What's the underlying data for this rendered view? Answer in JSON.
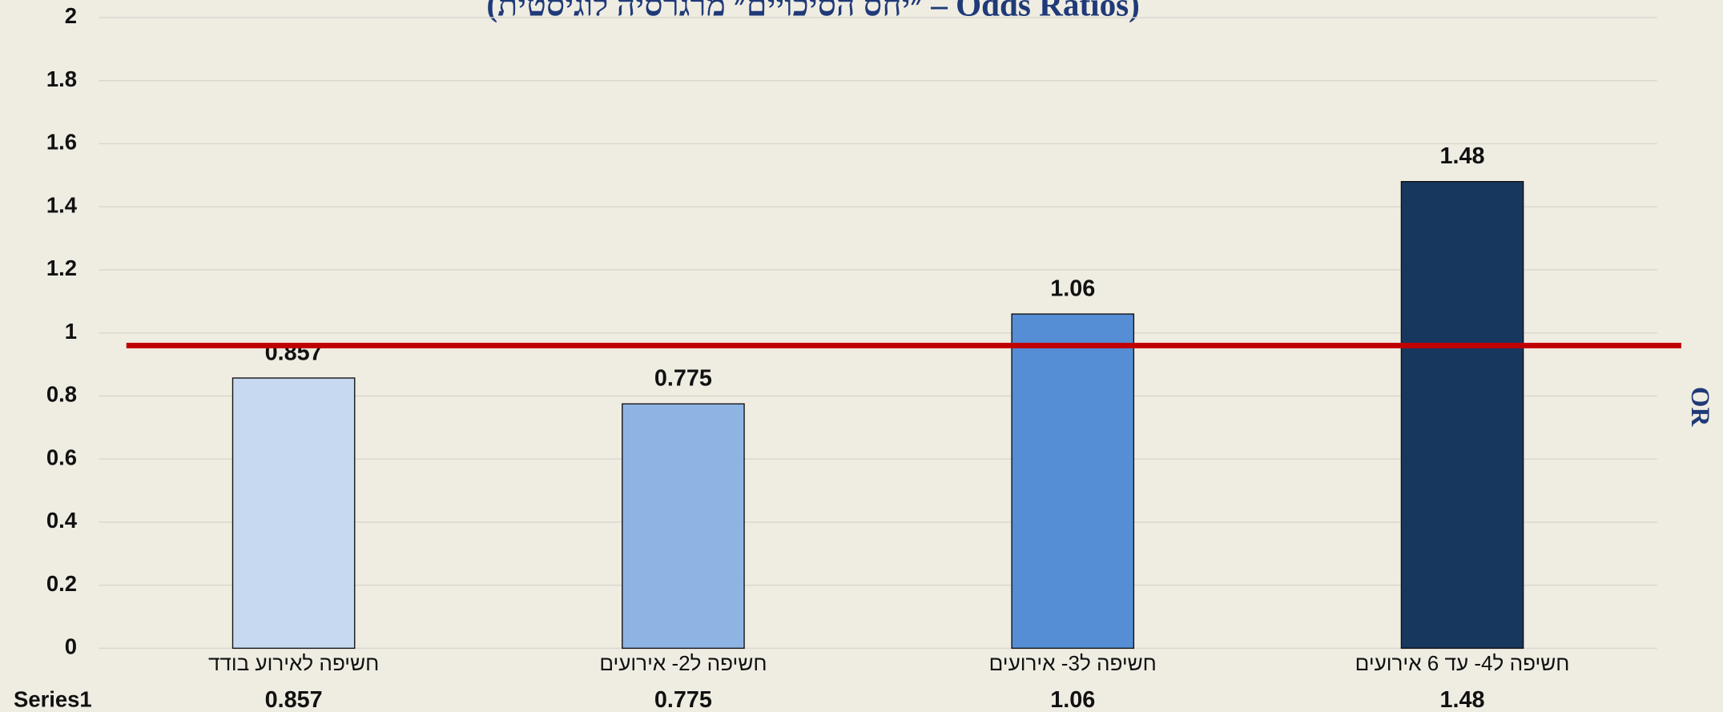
{
  "chart_data": {
    "type": "bar",
    "title": "(Odds Ratios – ״יחס הסיכויים״ מרגרסיה לוגיסטית)",
    "ylabel": "OR",
    "categories": [
      "חשיפה לאירוע בודד",
      "חשיפה ל2- אירועים",
      "חשיפה ל3- אירועים",
      "חשיפה ל4- עד 6 אירועים"
    ],
    "series": [
      {
        "name": "Series1",
        "colors": [
          "#c6d9f1",
          "#8eb4e3",
          "#558ed5",
          "#17375e"
        ],
        "values": [
          0.857,
          0.775,
          1.06,
          1.48
        ]
      }
    ],
    "ylim": [
      0,
      2
    ],
    "yticks": [
      0,
      0.2,
      0.4,
      0.6,
      0.8,
      1,
      1.2,
      1.4,
      1.6,
      1.8,
      2
    ],
    "grid": true,
    "reference_line": {
      "value": 0.96,
      "color": "#c00000"
    }
  }
}
